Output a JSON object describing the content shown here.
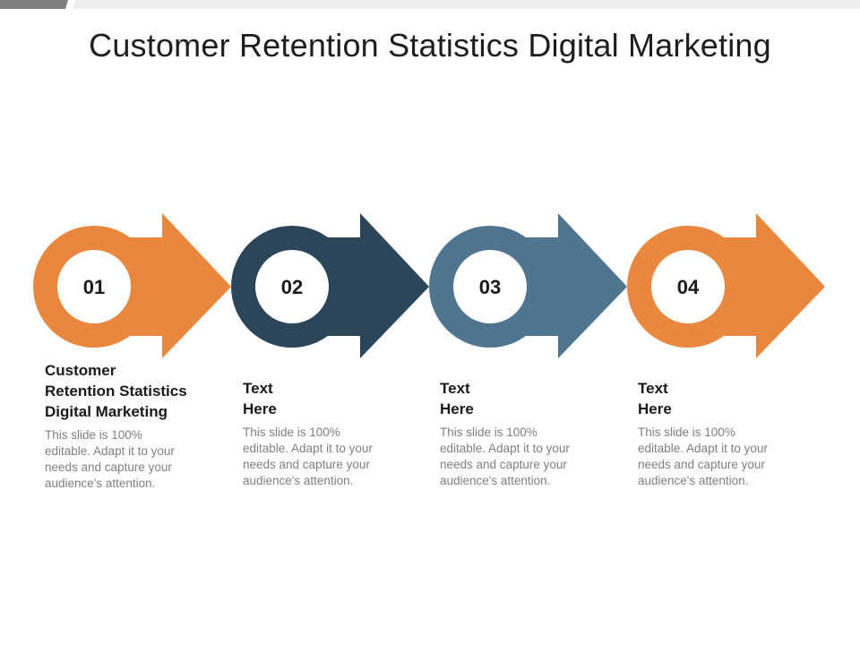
{
  "title": "Customer Retention Statistics Digital Marketing",
  "colors": {
    "orange": "#E8873D",
    "navy": "#2C4558",
    "steel_blue": "#4F7590",
    "top_bar_dark": "#7f7f7f",
    "top_bar_light": "#eeeeee"
  },
  "steps": [
    {
      "number": "01",
      "color": "#E8873D",
      "heading_lines": [
        "Customer",
        "Retention Statistics",
        "Digital Marketing"
      ],
      "body_lines": [
        "This slide is 100%",
        "editable. Adapt it to your",
        "needs and capture your",
        "audience's attention."
      ]
    },
    {
      "number": "02",
      "color": "#2C4558",
      "heading_lines": [
        "Text",
        "Here"
      ],
      "body_lines": [
        "This slide is 100%",
        "editable. Adapt it to your",
        "needs and capture your",
        "audience's attention."
      ]
    },
    {
      "number": "03",
      "color": "#4F7590",
      "heading_lines": [
        "Text",
        "Here"
      ],
      "body_lines": [
        "This slide is 100%",
        "editable. Adapt it to your",
        "needs and capture your",
        "audience's attention."
      ]
    },
    {
      "number": "04",
      "color": "#E8873D",
      "heading_lines": [
        "Text",
        "Here"
      ],
      "body_lines": [
        "This slide is 100%",
        "editable. Adapt it to your",
        "needs and capture your",
        "audience's attention."
      ]
    }
  ]
}
